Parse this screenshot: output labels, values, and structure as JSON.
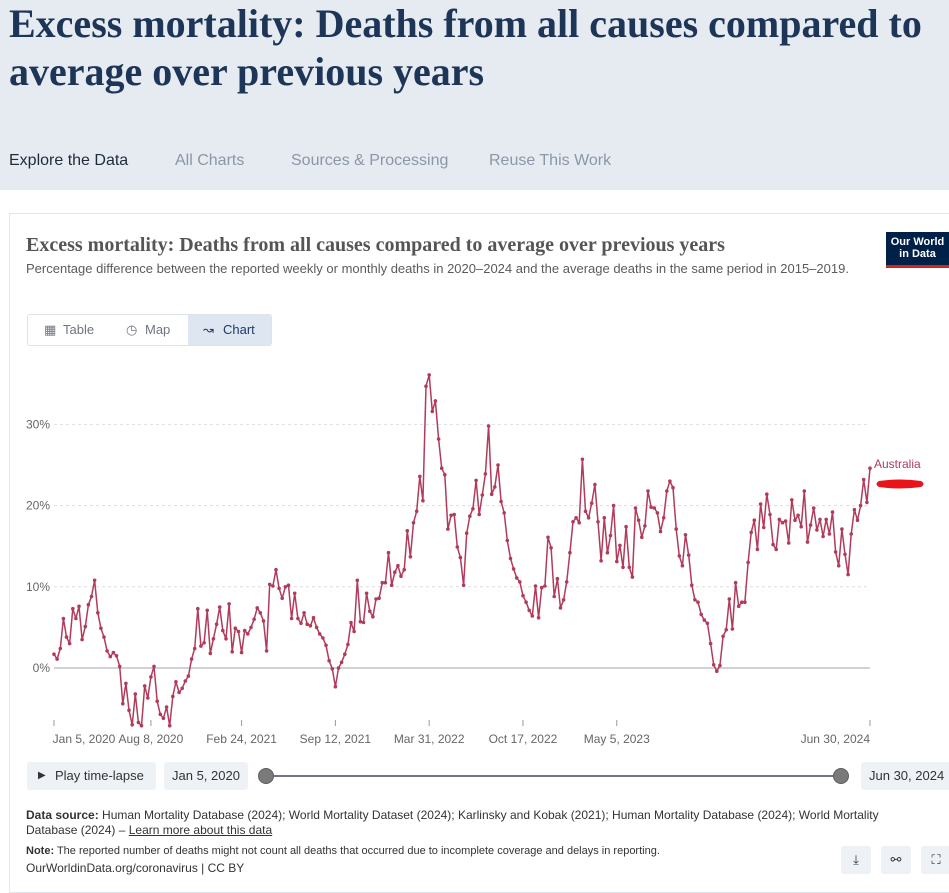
{
  "page": {
    "title": "Excess mortality: Deaths from all causes compared to average over previous years",
    "tabs": [
      "Explore the Data",
      "All Charts",
      "Sources & Processing",
      "Reuse This Work"
    ]
  },
  "chart": {
    "title": "Excess mortality: Deaths from all causes compared to average over previous years",
    "subtitle": "Percentage difference between the reported weekly or monthly deaths in 2020–2024 and the average deaths in the same period in 2015–2019.",
    "logo_line1": "Our World",
    "logo_line2": "in Data",
    "view_tabs": [
      "Table",
      "Map",
      "Chart"
    ],
    "active_view": "Chart"
  },
  "timeline": {
    "play_label": "Play time-lapse",
    "start_label": "Jan 5, 2020",
    "end_label": "Jun 30, 2024"
  },
  "footer": {
    "source_label": "Data source:",
    "source_text": " Human Mortality Database (2024); World Mortality Dataset (2024); Karlinsky and Kobak (2021); Human Mortality Database (2024); World Mortality Database (2024) – ",
    "learn_more": "Learn more about this data",
    "note_label": "Note:",
    "note_text": " The reported number of deaths might not count all deaths that occurred due to incomplete coverage and delays in reporting.",
    "url": "OurWorldinData.org/coronavirus | CC BY"
  },
  "colors": {
    "series": "#b13b5a",
    "title": "#1d3557",
    "header_bg": "#e6ebf2",
    "annotation": "#e8141a"
  },
  "icons": {
    "table": "table-icon",
    "map": "globe-icon",
    "chart": "line-chart-icon",
    "play": "play-icon",
    "download": "download-icon",
    "share": "share-icon",
    "fullscreen": "fullscreen-icon"
  },
  "chart_data": {
    "type": "line",
    "title": "Excess mortality: Deaths from all causes compared to average over previous years",
    "ylim": [
      -7,
      37
    ],
    "y_ticks": [
      0,
      10,
      20,
      30
    ],
    "y_tick_labels": [
      "0%",
      "10%",
      "20%",
      "30%"
    ],
    "x_tick_labels": [
      "Jan 5, 2020",
      "Aug 8, 2020",
      "Feb 24, 2021",
      "Sep 12, 2021",
      "Mar 31, 2022",
      "Oct 17, 2022",
      "May 5, 2023",
      "Jun 30, 2024"
    ],
    "x_start": "2020-01-05",
    "x_step_days": 7,
    "grid": true,
    "series": [
      {
        "name": "Australia",
        "values": [
          1.7,
          1.1,
          2.4,
          6.1,
          3.8,
          3.0,
          7.3,
          6.1,
          7.6,
          3.5,
          5.1,
          7.8,
          8.8,
          10.8,
          6.8,
          4.9,
          3.8,
          2.1,
          1.4,
          1.9,
          1.5,
          0.2,
          -4.4,
          -1.9,
          -5.2,
          -7.0,
          -3.2,
          -6.7,
          -7.1,
          -2.2,
          -3.7,
          -1.1,
          0.2,
          -4.1,
          -5.7,
          -6.2,
          -4.8,
          -7.1,
          -3.5,
          -1.7,
          -3.0,
          -2.5,
          -1.6,
          -1.0,
          1.1,
          2.4,
          7.3,
          2.7,
          3.1,
          7.1,
          1.8,
          3.6,
          5.4,
          7.5,
          4.6,
          3.6,
          7.9,
          2.0,
          4.9,
          4.5,
          1.9,
          4.6,
          4.2,
          5.0,
          6.0,
          7.4,
          6.8,
          5.8,
          2.1,
          10.3,
          10.1,
          12.1,
          9.8,
          8.6,
          10.0,
          10.2,
          6.1,
          9.2,
          6.1,
          5.5,
          6.8,
          5.4,
          5.2,
          6.2,
          5.0,
          4.2,
          3.7,
          2.8,
          0.9,
          -0.1,
          -2.3,
          0.0,
          0.7,
          1.7,
          2.9,
          5.6,
          4.5,
          10.8,
          5.7,
          5.6,
          9.2,
          7.0,
          6.3,
          8.5,
          8.6,
          10.5,
          10.5,
          14.2,
          10.2,
          11.8,
          12.6,
          11.3,
          12.1,
          16.9,
          13.7,
          17.9,
          19.3,
          23.6,
          20.6,
          34.7,
          36.1,
          31.6,
          32.9,
          28.2,
          24.6,
          23.8,
          17.1,
          18.8,
          18.9,
          14.9,
          13.6,
          10.2,
          16.6,
          18.7,
          19.6,
          23.1,
          18.9,
          21.3,
          23.9,
          29.8,
          21.4,
          22.3,
          25.0,
          20.5,
          19.1,
          15.7,
          13.5,
          12.2,
          11.1,
          10.6,
          8.9,
          8.1,
          7.1,
          6.4,
          10.1,
          6.2,
          9.9,
          10.1,
          16.1,
          14.8,
          8.8,
          11.0,
          7.4,
          8.4,
          10.6,
          14.2,
          18.0,
          18.5,
          17.9,
          25.7,
          19.3,
          18.5,
          20.3,
          22.6,
          18.0,
          13.2,
          18.5,
          14.2,
          16.3,
          20.0,
          13.1,
          15.1,
          12.4,
          17.4,
          12.4,
          11.2,
          19.7,
          18.2,
          16.1,
          17.5,
          21.8,
          19.8,
          19.7,
          19.1,
          16.8,
          18.5,
          21.8,
          23.0,
          22.2,
          17.1,
          13.8,
          12.6,
          16.4,
          13.9,
          10.2,
          8.4,
          8.1,
          6.6,
          5.9,
          5.5,
          3.0,
          0.4,
          -0.4,
          0.3,
          3.9,
          4.7,
          8.5,
          4.8,
          10.5,
          7.6,
          8.1,
          8.1,
          13.0,
          16.7,
          18.2,
          14.6,
          20.2,
          17.3,
          21.4,
          18.9,
          15.2,
          14.6,
          18.3,
          17.9,
          18.1,
          15.4,
          20.7,
          18.2,
          18.8,
          17.4,
          21.8,
          15.5,
          17.6,
          19.7,
          17.0,
          18.3,
          16.2,
          18.3,
          16.5,
          19.2,
          14.3,
          12.6,
          17.1,
          14.0,
          11.5,
          16.5,
          19.5,
          18.2,
          20.0,
          23.2,
          20.4,
          24.6
        ]
      }
    ]
  }
}
